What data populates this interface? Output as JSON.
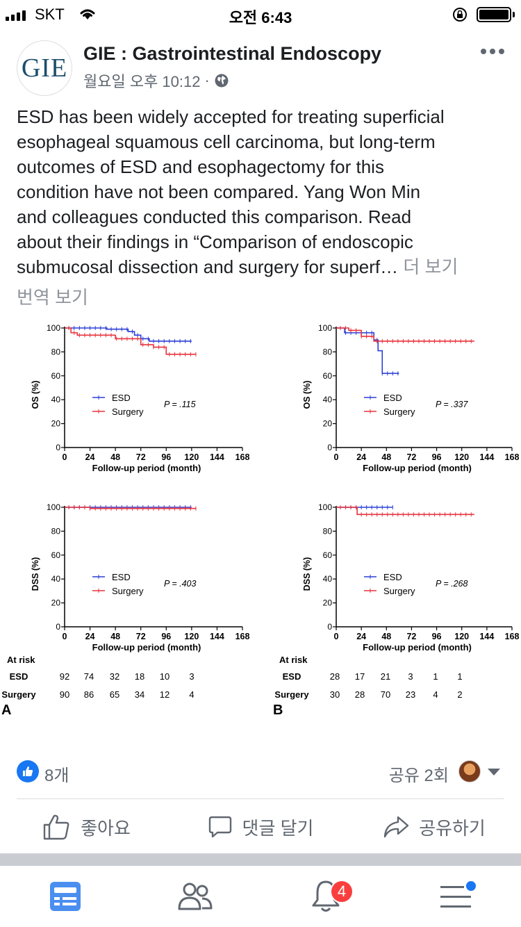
{
  "status_bar": {
    "carrier": "SKT",
    "time": "오전 6:43",
    "battery_level": 1.0
  },
  "post": {
    "page_name": "GIE : Gastrointestinal Endoscopy",
    "avatar_text": "GIE",
    "timestamp": "월요일 오후 10:12",
    "separator": "·",
    "body_lines": [
      "ESD has been widely accepted for treating superficial",
      "esophageal squamous cell carcinoma, but long-term",
      "outcomes of ESD and esophagectomy for this",
      "condition have not been compared. Yang Won Min",
      "and colleagues conducted this comparison. Read",
      "about their findings in “Comparison of endoscopic",
      "submucosal dissection and surgery for superf…"
    ],
    "see_more": "더 보기",
    "translate": "번역 보기"
  },
  "figure": {
    "panels": [
      {
        "ylabel": "OS (%)",
        "xlabel": "Follow-up period (month)",
        "p_value": "P = .115",
        "x_ticks": [
          "0",
          "24",
          "48",
          "72",
          "96",
          "120",
          "144",
          "168"
        ],
        "y_ticks": [
          "0",
          "20",
          "40",
          "60",
          "80",
          "100"
        ],
        "legend": [
          "ESD",
          "Surgery"
        ]
      },
      {
        "ylabel": "OS (%)",
        "xlabel": "Follow-up period (month)",
        "p_value": "P = .337",
        "x_ticks": [
          "0",
          "24",
          "48",
          "72",
          "96",
          "120",
          "144",
          "168"
        ],
        "y_ticks": [
          "0",
          "20",
          "40",
          "60",
          "80",
          "100"
        ],
        "legend": [
          "ESD",
          "Surgery"
        ]
      },
      {
        "ylabel": "DSS (%)",
        "xlabel": "Follow-up period (month)",
        "p_value": "P = .403",
        "x_ticks": [
          "0",
          "24",
          "48",
          "72",
          "96",
          "120",
          "144",
          "168"
        ],
        "y_ticks": [
          "0",
          "20",
          "40",
          "60",
          "80",
          "100"
        ],
        "legend": [
          "ESD",
          "Surgery"
        ]
      },
      {
        "ylabel": "DSS (%)",
        "xlabel": "Follow-up period (month)",
        "p_value": "P = .268",
        "x_ticks": [
          "0",
          "24",
          "48",
          "72",
          "96",
          "120",
          "144",
          "168"
        ],
        "y_ticks": [
          "0",
          "20",
          "40",
          "60",
          "80",
          "100"
        ],
        "legend": [
          "ESD",
          "Surgery"
        ]
      }
    ],
    "at_risk": {
      "title": "At risk",
      "row_labels": [
        "ESD",
        "Surgery"
      ],
      "A": {
        "label": "A",
        "esd": [
          "92",
          "74",
          "32",
          "18",
          "10",
          "3"
        ],
        "surgery": [
          "90",
          "86",
          "65",
          "34",
          "12",
          "4"
        ]
      },
      "B": {
        "label": "B",
        "esd": [
          "28",
          "17",
          "21",
          "3",
          "1",
          "1"
        ],
        "surgery": [
          "30",
          "28",
          "70",
          "23",
          "4",
          "2"
        ]
      }
    },
    "colors": {
      "esd": "#2b3fd6",
      "surgery": "#e8323c"
    }
  },
  "chart_data": [
    {
      "type": "line",
      "title": "",
      "xlabel": "Follow-up period (month)",
      "ylabel": "OS (%)",
      "xlim": [
        0,
        168
      ],
      "ylim": [
        0,
        100
      ],
      "series": [
        {
          "name": "ESD",
          "x": [
            0,
            12,
            40,
            60,
            66,
            72,
            80,
            120
          ],
          "y": [
            100,
            100,
            99,
            97,
            94,
            91,
            89,
            89
          ]
        },
        {
          "name": "Surgery",
          "x": [
            0,
            6,
            12,
            24,
            48,
            60,
            72,
            84,
            96,
            108,
            124
          ],
          "y": [
            100,
            96,
            94,
            94,
            91,
            91,
            86,
            84,
            78,
            78,
            78
          ]
        }
      ],
      "annotation": "P = .115"
    },
    {
      "type": "line",
      "title": "",
      "xlabel": "Follow-up period (month)",
      "ylabel": "OS (%)",
      "xlim": [
        0,
        168
      ],
      "ylim": [
        0,
        100
      ],
      "series": [
        {
          "name": "ESD",
          "x": [
            0,
            8,
            24,
            36,
            40,
            44,
            48,
            60
          ],
          "y": [
            100,
            96,
            96,
            90,
            81,
            62,
            62,
            62
          ]
        },
        {
          "name": "Surgery",
          "x": [
            0,
            12,
            24,
            36,
            48,
            96,
            132
          ],
          "y": [
            100,
            98,
            93,
            89,
            89,
            89,
            89
          ]
        }
      ],
      "annotation": "P = .337"
    },
    {
      "type": "line",
      "title": "",
      "xlabel": "Follow-up period (month)",
      "ylabel": "DSS (%)",
      "xlim": [
        0,
        168
      ],
      "ylim": [
        0,
        100
      ],
      "series": [
        {
          "name": "ESD",
          "x": [
            0,
            60,
            120
          ],
          "y": [
            100,
            100,
            100
          ]
        },
        {
          "name": "Surgery",
          "x": [
            0,
            24,
            60,
            96,
            124
          ],
          "y": [
            100,
            99,
            99,
            99,
            99
          ]
        }
      ],
      "annotation": "P = .403"
    },
    {
      "type": "line",
      "title": "",
      "xlabel": "Follow-up period (month)",
      "ylabel": "DSS (%)",
      "xlim": [
        0,
        168
      ],
      "ylim": [
        0,
        100
      ],
      "series": [
        {
          "name": "ESD",
          "x": [
            0,
            24,
            48,
            54
          ],
          "y": [
            100,
            100,
            100,
            100
          ]
        },
        {
          "name": "Surgery",
          "x": [
            0,
            12,
            20,
            36,
            96,
            132
          ],
          "y": [
            100,
            100,
            94,
            94,
            94,
            94
          ]
        }
      ],
      "annotation": "P = .268"
    }
  ],
  "reactions": {
    "like_count": "8개",
    "share_count": "공유 2회"
  },
  "actions": {
    "like": "좋아요",
    "comment": "댓글 달기",
    "share": "공유하기"
  },
  "bottom_nav": {
    "notification_badge": "4",
    "icons": [
      "news-feed-icon",
      "friends-icon",
      "notifications-icon",
      "menu-icon"
    ]
  }
}
